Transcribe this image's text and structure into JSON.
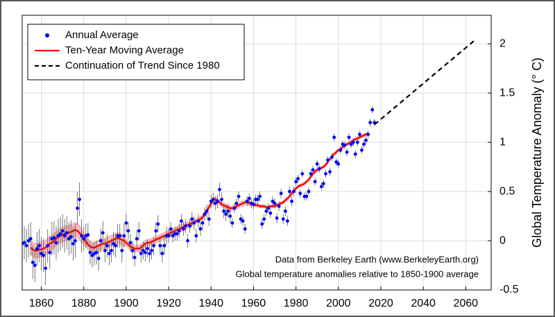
{
  "chart_data": {
    "type": "line",
    "ylabel": "Global Temperature Anomaly (° C)",
    "annotations": [
      "Data from Berkeley Earth (www.BerkeleyEarth.org)",
      "Global temperature anomalies relative to 1850-1900 average"
    ],
    "xlim": [
      1851,
      2072
    ],
    "ylim": [
      -0.5,
      2.29
    ],
    "xticks": [
      1860,
      1880,
      1900,
      1920,
      1940,
      1960,
      1980,
      2000,
      2020,
      2040,
      2060
    ],
    "yticks": [
      -0.5,
      0,
      0.5,
      1,
      1.5,
      2
    ],
    "grid": true,
    "legend": "upper left",
    "series": [
      {
        "name": "Annual Average",
        "type": "scatter",
        "color": "#0000ff",
        "x": [
          1850,
          1851,
          1852,
          1853,
          1854,
          1855,
          1856,
          1857,
          1858,
          1859,
          1860,
          1861,
          1862,
          1863,
          1864,
          1865,
          1866,
          1867,
          1868,
          1869,
          1870,
          1871,
          1872,
          1873,
          1874,
          1875,
          1876,
          1877,
          1878,
          1879,
          1880,
          1881,
          1882,
          1883,
          1884,
          1885,
          1886,
          1887,
          1888,
          1889,
          1890,
          1891,
          1892,
          1893,
          1894,
          1895,
          1896,
          1897,
          1898,
          1899,
          1900,
          1901,
          1902,
          1903,
          1904,
          1905,
          1906,
          1907,
          1908,
          1909,
          1910,
          1911,
          1912,
          1913,
          1914,
          1915,
          1916,
          1917,
          1918,
          1919,
          1920,
          1921,
          1922,
          1923,
          1924,
          1925,
          1926,
          1927,
          1928,
          1929,
          1930,
          1931,
          1932,
          1933,
          1934,
          1935,
          1936,
          1937,
          1938,
          1939,
          1940,
          1941,
          1942,
          1943,
          1944,
          1945,
          1946,
          1947,
          1948,
          1949,
          1950,
          1951,
          1952,
          1953,
          1954,
          1955,
          1956,
          1957,
          1958,
          1959,
          1960,
          1961,
          1962,
          1963,
          1964,
          1965,
          1966,
          1967,
          1968,
          1969,
          1970,
          1971,
          1972,
          1973,
          1974,
          1975,
          1976,
          1977,
          1978,
          1979,
          1980,
          1981,
          1982,
          1983,
          1984,
          1985,
          1986,
          1987,
          1988,
          1989,
          1990,
          1991,
          1992,
          1993,
          1994,
          1995,
          1996,
          1997,
          1998,
          1999,
          2000,
          2001,
          2002,
          2003,
          2004,
          2005,
          2006,
          2007,
          2008,
          2009,
          2010,
          2011,
          2012,
          2013,
          2014,
          2015,
          2016,
          2017
        ],
        "values": [
          -0.15,
          -0.03,
          -0.02,
          -0.05,
          0.0,
          0.02,
          -0.22,
          -0.25,
          -0.08,
          -0.05,
          -0.13,
          -0.15,
          -0.28,
          -0.05,
          -0.12,
          0.02,
          0.03,
          -0.02,
          0.05,
          0.07,
          0.1,
          0.05,
          0.08,
          0.02,
          0.04,
          -0.03,
          0.0,
          0.33,
          0.42,
          0.05,
          0.02,
          0.05,
          0.06,
          -0.12,
          -0.15,
          -0.13,
          -0.12,
          -0.18,
          0.0,
          0.08,
          -0.1,
          -0.05,
          -0.13,
          -0.1,
          -0.03,
          -0.05,
          0.05,
          0.05,
          -0.1,
          0.05,
          0.18,
          0.1,
          -0.02,
          -0.1,
          -0.17,
          0.02,
          0.1,
          -0.13,
          -0.1,
          -0.12,
          -0.08,
          -0.13,
          -0.1,
          -0.05,
          0.1,
          0.17,
          -0.05,
          -0.13,
          -0.05,
          0.05,
          0.05,
          0.12,
          0.05,
          0.07,
          0.07,
          0.1,
          0.2,
          0.12,
          0.15,
          0.0,
          0.15,
          0.22,
          0.18,
          0.05,
          0.2,
          0.12,
          0.18,
          0.27,
          0.3,
          0.22,
          0.4,
          0.42,
          0.38,
          0.4,
          0.52,
          0.42,
          0.3,
          0.27,
          0.3,
          0.25,
          0.18,
          0.33,
          0.38,
          0.45,
          0.22,
          0.2,
          0.12,
          0.4,
          0.43,
          0.38,
          0.37,
          0.42,
          0.42,
          0.45,
          0.17,
          0.22,
          0.3,
          0.33,
          0.28,
          0.4,
          0.38,
          0.23,
          0.35,
          0.48,
          0.22,
          0.3,
          0.2,
          0.5,
          0.4,
          0.5,
          0.6,
          0.63,
          0.48,
          0.68,
          0.45,
          0.45,
          0.5,
          0.68,
          0.72,
          0.6,
          0.78,
          0.73,
          0.55,
          0.58,
          0.68,
          0.82,
          0.7,
          0.85,
          1.05,
          0.8,
          0.78,
          0.92,
          0.98,
          0.97,
          0.9,
          1.05,
          0.98,
          1.0,
          0.88,
          1.0,
          1.08,
          0.92,
          0.98,
          1.02,
          1.08,
          1.2,
          1.33,
          1.2
        ],
        "errors": [
          0.17,
          0.17,
          0.17,
          0.17,
          0.17,
          0.17,
          0.17,
          0.17,
          0.17,
          0.17,
          0.17,
          0.17,
          0.17,
          0.17,
          0.17,
          0.17,
          0.17,
          0.17,
          0.17,
          0.17,
          0.17,
          0.17,
          0.17,
          0.17,
          0.17,
          0.17,
          0.17,
          0.17,
          0.17,
          0.17,
          0.12,
          0.12,
          0.12,
          0.12,
          0.12,
          0.12,
          0.12,
          0.12,
          0.12,
          0.12,
          0.12,
          0.12,
          0.12,
          0.12,
          0.12,
          0.12,
          0.12,
          0.12,
          0.12,
          0.12,
          0.09,
          0.09,
          0.09,
          0.09,
          0.09,
          0.09,
          0.09,
          0.09,
          0.09,
          0.09,
          0.09,
          0.09,
          0.09,
          0.09,
          0.09,
          0.09,
          0.09,
          0.09,
          0.09,
          0.09,
          0.07,
          0.07,
          0.07,
          0.07,
          0.07,
          0.07,
          0.07,
          0.07,
          0.07,
          0.07,
          0.07,
          0.07,
          0.07,
          0.07,
          0.07,
          0.07,
          0.07,
          0.07,
          0.07,
          0.07,
          0.07,
          0.07,
          0.07,
          0.07,
          0.07,
          0.07,
          0.07,
          0.07,
          0.07,
          0.07,
          0.05,
          0.05,
          0.05,
          0.05,
          0.05,
          0.05,
          0.05,
          0.05,
          0.05,
          0.05,
          0.05,
          0.05,
          0.05,
          0.05,
          0.05,
          0.05,
          0.05,
          0.05,
          0.05,
          0.05,
          0.05,
          0.05,
          0.05,
          0.05,
          0.05,
          0.05,
          0.05,
          0.05,
          0.05,
          0.05,
          0.04,
          0.04,
          0.04,
          0.04,
          0.04,
          0.04,
          0.04,
          0.04,
          0.04,
          0.04,
          0.04,
          0.04,
          0.04,
          0.04,
          0.04,
          0.04,
          0.04,
          0.04,
          0.04,
          0.04,
          0.04,
          0.04,
          0.04,
          0.04,
          0.04,
          0.04,
          0.04,
          0.04,
          0.04,
          0.04,
          0.04,
          0.04,
          0.04,
          0.04,
          0.04,
          0.04,
          0.04,
          0.04
        ]
      },
      {
        "name": "Ten-Year Moving Average",
        "type": "line",
        "color": "#ff0000",
        "band_color": "#f4a3a3",
        "x": [
          1855,
          1856,
          1857,
          1858,
          1859,
          1860,
          1861,
          1862,
          1863,
          1864,
          1865,
          1866,
          1867,
          1868,
          1869,
          1870,
          1871,
          1872,
          1873,
          1874,
          1875,
          1876,
          1877,
          1878,
          1879,
          1880,
          1881,
          1882,
          1883,
          1884,
          1885,
          1886,
          1887,
          1888,
          1889,
          1890,
          1891,
          1892,
          1893,
          1894,
          1895,
          1896,
          1897,
          1898,
          1899,
          1900,
          1901,
          1902,
          1903,
          1904,
          1905,
          1906,
          1907,
          1908,
          1909,
          1910,
          1911,
          1912,
          1913,
          1914,
          1915,
          1916,
          1917,
          1918,
          1919,
          1920,
          1921,
          1922,
          1923,
          1924,
          1925,
          1926,
          1927,
          1928,
          1929,
          1930,
          1931,
          1932,
          1933,
          1934,
          1935,
          1936,
          1937,
          1938,
          1939,
          1940,
          1941,
          1942,
          1943,
          1944,
          1945,
          1946,
          1947,
          1948,
          1949,
          1950,
          1951,
          1952,
          1953,
          1954,
          1955,
          1956,
          1957,
          1958,
          1959,
          1960,
          1961,
          1962,
          1963,
          1964,
          1965,
          1966,
          1967,
          1968,
          1969,
          1970,
          1971,
          1972,
          1973,
          1974,
          1975,
          1976,
          1977,
          1978,
          1979,
          1980,
          1981,
          1982,
          1983,
          1984,
          1985,
          1986,
          1987,
          1988,
          1989,
          1990,
          1991,
          1992,
          1993,
          1994,
          1995,
          1996,
          1997,
          1998,
          1999,
          2000,
          2001,
          2002,
          2003,
          2004,
          2005,
          2006,
          2007,
          2008,
          2009,
          2010,
          2011,
          2012,
          2013,
          2014
        ],
        "values": [
          -0.07,
          -0.09,
          -0.1,
          -0.1,
          -0.09,
          -0.09,
          -0.08,
          -0.07,
          -0.05,
          -0.03,
          -0.02,
          0.0,
          0.02,
          0.04,
          0.05,
          0.06,
          0.07,
          0.08,
          0.08,
          0.09,
          0.1,
          0.11,
          0.1,
          0.08,
          0.05,
          0.02,
          -0.01,
          -0.04,
          -0.06,
          -0.07,
          -0.07,
          -0.06,
          -0.05,
          -0.04,
          -0.03,
          -0.03,
          -0.02,
          -0.01,
          0.0,
          0.01,
          0.02,
          0.03,
          0.02,
          0.01,
          0.0,
          -0.02,
          -0.04,
          -0.06,
          -0.07,
          -0.08,
          -0.08,
          -0.08,
          -0.07,
          -0.05,
          -0.03,
          -0.02,
          -0.02,
          -0.01,
          0.0,
          0.01,
          0.02,
          0.03,
          0.04,
          0.05,
          0.06,
          0.07,
          0.08,
          0.09,
          0.1,
          0.11,
          0.12,
          0.13,
          0.14,
          0.15,
          0.16,
          0.17,
          0.18,
          0.19,
          0.2,
          0.21,
          0.22,
          0.24,
          0.27,
          0.3,
          0.34,
          0.38,
          0.41,
          0.42,
          0.41,
          0.39,
          0.37,
          0.36,
          0.35,
          0.34,
          0.33,
          0.33,
          0.34,
          0.35,
          0.36,
          0.37,
          0.38,
          0.39,
          0.39,
          0.38,
          0.37,
          0.37,
          0.36,
          0.36,
          0.35,
          0.35,
          0.35,
          0.34,
          0.34,
          0.35,
          0.35,
          0.35,
          0.36,
          0.37,
          0.38,
          0.39,
          0.41,
          0.43,
          0.45,
          0.48,
          0.51,
          0.53,
          0.55,
          0.56,
          0.57,
          0.58,
          0.6,
          0.62,
          0.65,
          0.68,
          0.7,
          0.72,
          0.73,
          0.74,
          0.75,
          0.77,
          0.8,
          0.83,
          0.86,
          0.88,
          0.9,
          0.92,
          0.93,
          0.95,
          0.97,
          0.98,
          0.99,
          1.0,
          1.02,
          1.03,
          1.04,
          1.05,
          1.06,
          1.07,
          1.08,
          1.09
        ],
        "band": [
          0.08,
          0.08,
          0.08,
          0.08,
          0.08,
          0.08,
          0.08,
          0.08,
          0.08,
          0.08,
          0.08,
          0.08,
          0.08,
          0.08,
          0.08,
          0.08,
          0.08,
          0.08,
          0.08,
          0.08,
          0.08,
          0.08,
          0.08,
          0.08,
          0.08,
          0.06,
          0.06,
          0.06,
          0.06,
          0.06,
          0.06,
          0.06,
          0.06,
          0.06,
          0.06,
          0.06,
          0.06,
          0.06,
          0.06,
          0.06,
          0.06,
          0.06,
          0.06,
          0.06,
          0.06,
          0.04,
          0.04,
          0.04,
          0.04,
          0.04,
          0.04,
          0.04,
          0.04,
          0.04,
          0.04,
          0.04,
          0.04,
          0.04,
          0.04,
          0.04,
          0.04,
          0.04,
          0.04,
          0.04,
          0.04,
          0.04,
          0.04,
          0.04,
          0.04,
          0.04,
          0.04,
          0.04,
          0.04,
          0.04,
          0.04,
          0.03,
          0.03,
          0.03,
          0.03,
          0.03,
          0.03,
          0.03,
          0.03,
          0.03,
          0.03,
          0.03,
          0.03,
          0.03,
          0.03,
          0.03,
          0.03,
          0.03,
          0.03,
          0.03,
          0.03,
          0.03,
          0.03,
          0.03,
          0.03,
          0.03,
          0.03,
          0.03,
          0.03,
          0.03,
          0.03,
          0.02,
          0.02,
          0.02,
          0.02,
          0.02,
          0.02,
          0.02,
          0.02,
          0.02,
          0.02,
          0.02,
          0.02,
          0.02,
          0.02,
          0.02,
          0.02,
          0.02,
          0.02,
          0.02,
          0.02,
          0.02,
          0.02,
          0.02,
          0.02,
          0.02,
          0.02,
          0.02,
          0.02,
          0.02,
          0.02,
          0.02,
          0.02,
          0.02,
          0.02,
          0.02,
          0.02,
          0.02,
          0.02,
          0.02,
          0.02,
          0.02,
          0.02,
          0.02,
          0.02,
          0.02,
          0.02,
          0.02,
          0.02,
          0.02,
          0.02,
          0.02,
          0.02,
          0.02,
          0.02,
          0.02
        ]
      },
      {
        "name": "Continuation of Trend Since 1980",
        "type": "dashed",
        "color": "#000000",
        "x": [
          2017,
          2065
        ],
        "values": [
          1.18,
          2.05
        ]
      }
    ]
  }
}
